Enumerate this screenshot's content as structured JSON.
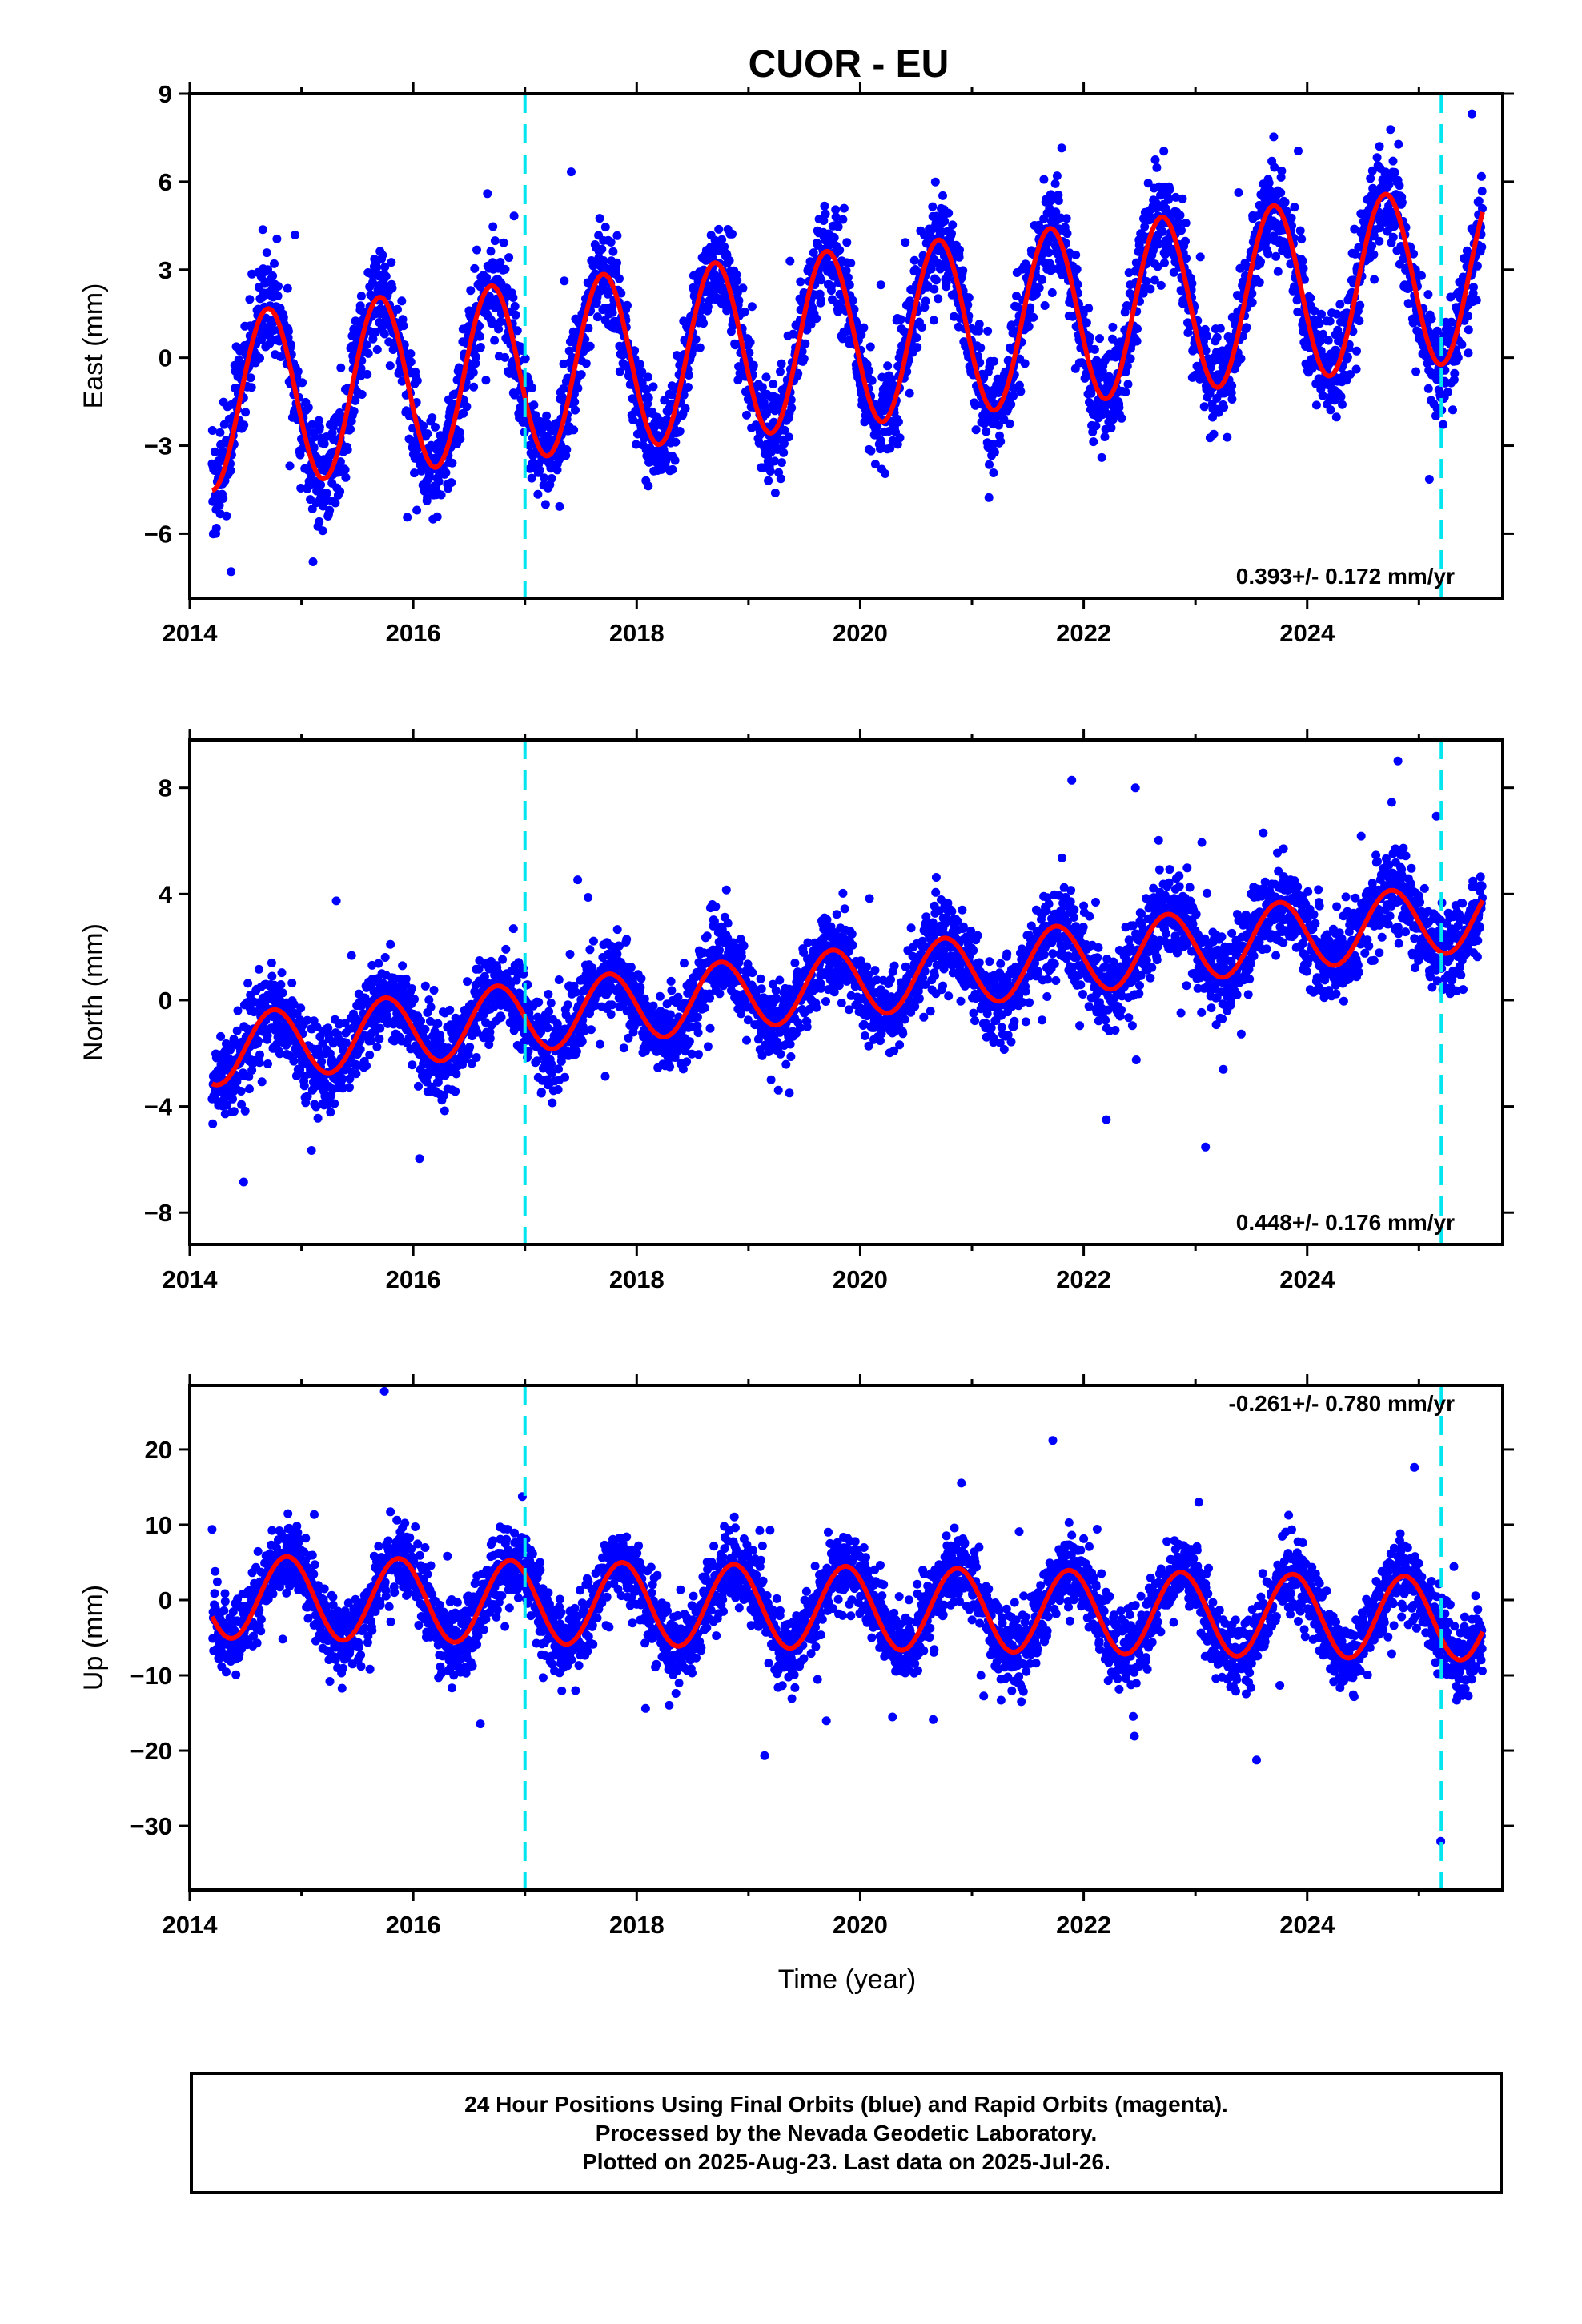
{
  "title": "CUOR - EU",
  "xlabel": "Time (year)",
  "footer": {
    "line1": "24 Hour Positions Using Final Orbits (blue) and Rapid Orbits (magenta).",
    "line2": "Processed by the Nevada Geodetic Laboratory.",
    "line3": "Plotted on 2025-Aug-23. Last data on 2025-Jul-26."
  },
  "colors": {
    "points": "#0000ff",
    "fit": "#ff0000",
    "break_lines": "#00e5ee",
    "frame": "#000000"
  },
  "chart_data": [
    {
      "type": "scatter",
      "ylabel": "East (mm)",
      "xlim": [
        2014.0,
        2025.75
      ],
      "ylim": [
        -8.2,
        9.0
      ],
      "yticks": [
        9,
        6,
        3,
        0,
        -3,
        -6
      ],
      "xticks": [
        2014,
        2016,
        2018,
        2020,
        2022,
        2024
      ],
      "rate_text": "0.393+/- 0.172 mm/yr",
      "breaks": [
        2017.0,
        2025.2
      ],
      "series": [
        {
          "kind": "daily",
          "x_start": 2014.2,
          "x_end": 2025.57,
          "amplitude": 3.0,
          "phase": 0.45,
          "trend": 0.39,
          "intercept": -1.6,
          "noise": 1.5
        },
        {
          "kind": "fit",
          "amplitude": 3.0,
          "phase": 0.45,
          "trend": 0.39,
          "intercept": -1.6
        }
      ]
    },
    {
      "type": "scatter",
      "ylabel": "North (mm)",
      "xlim": [
        2014.0,
        2025.75
      ],
      "ylim": [
        -9.2,
        9.8
      ],
      "yticks": [
        8,
        4,
        0,
        -4,
        -8
      ],
      "xticks": [
        2014,
        2016,
        2018,
        2020,
        2022,
        2024
      ],
      "rate_text": "0.448+/- 0.176 mm/yr",
      "breaks": [
        2017.0,
        2025.2
      ],
      "series": [
        {
          "kind": "daily",
          "x_start": 2014.2,
          "x_end": 2025.57,
          "amplitude": 1.3,
          "phase": 0.5,
          "trend": 0.45,
          "intercept": -2.0,
          "noise": 1.4
        },
        {
          "kind": "fit",
          "amplitude": 1.3,
          "phase": 0.5,
          "trend": 0.45,
          "intercept": -2.0
        }
      ]
    },
    {
      "type": "scatter",
      "ylabel": "Up (mm)",
      "xlim": [
        2014.0,
        2025.75
      ],
      "ylim": [
        -38.5,
        28.5
      ],
      "yticks": [
        20,
        10,
        0,
        -10,
        -20,
        -30
      ],
      "xticks": [
        2014,
        2016,
        2018,
        2020,
        2022,
        2024
      ],
      "rate_text": "-0.261+/- 0.780 mm/yr",
      "breaks": [
        2017.0,
        2025.2
      ],
      "series": [
        {
          "kind": "daily",
          "x_start": 2014.2,
          "x_end": 2025.57,
          "amplitude": 5.5,
          "phase": 0.62,
          "trend": -0.26,
          "intercept": 0.5,
          "noise": 4.5
        },
        {
          "kind": "fit",
          "amplitude": 5.5,
          "phase": 0.62,
          "trend": -0.26,
          "intercept": 0.5
        }
      ]
    }
  ]
}
